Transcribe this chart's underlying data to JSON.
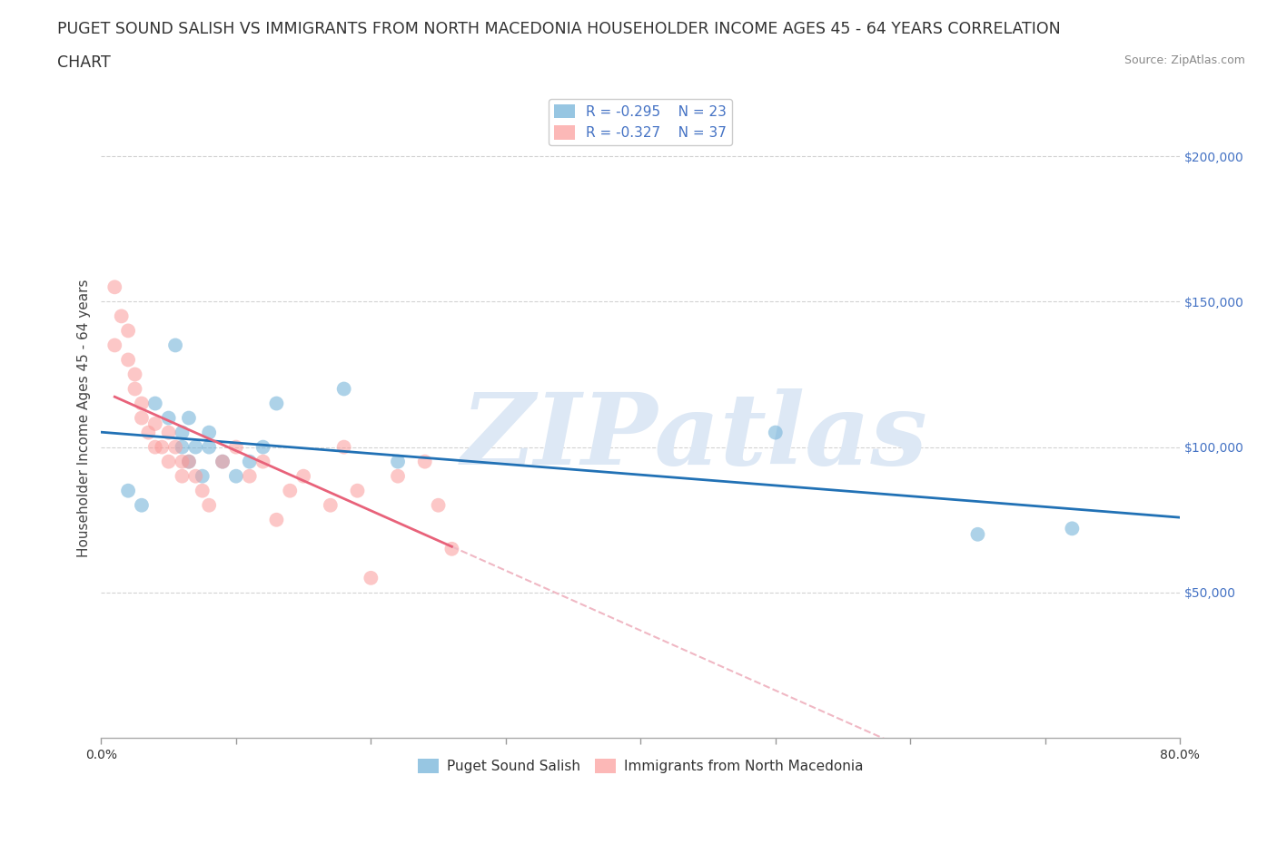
{
  "title_line1": "PUGET SOUND SALISH VS IMMIGRANTS FROM NORTH MACEDONIA HOUSEHOLDER INCOME AGES 45 - 64 YEARS CORRELATION",
  "title_line2": "CHART",
  "source_text": "Source: ZipAtlas.com",
  "ylabel": "Householder Income Ages 45 - 64 years",
  "xlim": [
    0.0,
    0.8
  ],
  "ylim": [
    0,
    220000
  ],
  "yticks": [
    50000,
    100000,
    150000,
    200000
  ],
  "xticks": [
    0.0,
    0.1,
    0.2,
    0.3,
    0.4,
    0.5,
    0.6,
    0.7,
    0.8
  ],
  "xtick_labels_shown": [
    "0.0%",
    "",
    "",
    "",
    "",
    "",
    "",
    "",
    "80.0%"
  ],
  "ytick_labels": [
    "$50,000",
    "$100,000",
    "$150,000",
    "$200,000"
  ],
  "blue_scatter_x": [
    0.02,
    0.03,
    0.04,
    0.055,
    0.06,
    0.06,
    0.065,
    0.065,
    0.07,
    0.075,
    0.08,
    0.09,
    0.1,
    0.11,
    0.12,
    0.13,
    0.18,
    0.22,
    0.5,
    0.65,
    0.72,
    0.05,
    0.08
  ],
  "blue_scatter_y": [
    85000,
    80000,
    115000,
    135000,
    100000,
    105000,
    95000,
    110000,
    100000,
    90000,
    100000,
    95000,
    90000,
    95000,
    100000,
    115000,
    120000,
    95000,
    105000,
    70000,
    72000,
    110000,
    105000
  ],
  "pink_scatter_x": [
    0.01,
    0.01,
    0.015,
    0.02,
    0.02,
    0.025,
    0.025,
    0.03,
    0.03,
    0.035,
    0.04,
    0.04,
    0.045,
    0.05,
    0.05,
    0.055,
    0.06,
    0.06,
    0.065,
    0.07,
    0.075,
    0.08,
    0.09,
    0.1,
    0.11,
    0.12,
    0.13,
    0.14,
    0.15,
    0.17,
    0.18,
    0.19,
    0.2,
    0.22,
    0.24,
    0.25,
    0.26
  ],
  "pink_scatter_y": [
    155000,
    135000,
    145000,
    140000,
    130000,
    120000,
    125000,
    115000,
    110000,
    105000,
    100000,
    108000,
    100000,
    105000,
    95000,
    100000,
    95000,
    90000,
    95000,
    90000,
    85000,
    80000,
    95000,
    100000,
    90000,
    95000,
    75000,
    85000,
    90000,
    80000,
    100000,
    85000,
    55000,
    90000,
    95000,
    80000,
    65000
  ],
  "blue_color": "#6baed6",
  "pink_color": "#fb9a99",
  "blue_line_color": "#2171b5",
  "pink_line_color": "#e8627a",
  "pink_line_dashed_color": "#f0b8c4",
  "R_blue": -0.295,
  "N_blue": 23,
  "R_pink": -0.327,
  "N_pink": 37,
  "legend_label_blue": "Puget Sound Salish",
  "legend_label_pink": "Immigrants from North Macedonia",
  "marker_size": 130,
  "marker_alpha": 0.55,
  "grid_color": "#c8c8c8",
  "grid_style": "--",
  "grid_alpha": 0.8,
  "axis_color": "#4472c4",
  "r_n_color": "#4472c4",
  "watermark": "ZIPatlas",
  "watermark_color": "#dde8f5",
  "watermark_fontsize": 80,
  "background_color": "#ffffff",
  "title_fontsize": 12.5,
  "ylabel_fontsize": 11,
  "tick_fontsize": 10,
  "legend_fontsize": 11
}
